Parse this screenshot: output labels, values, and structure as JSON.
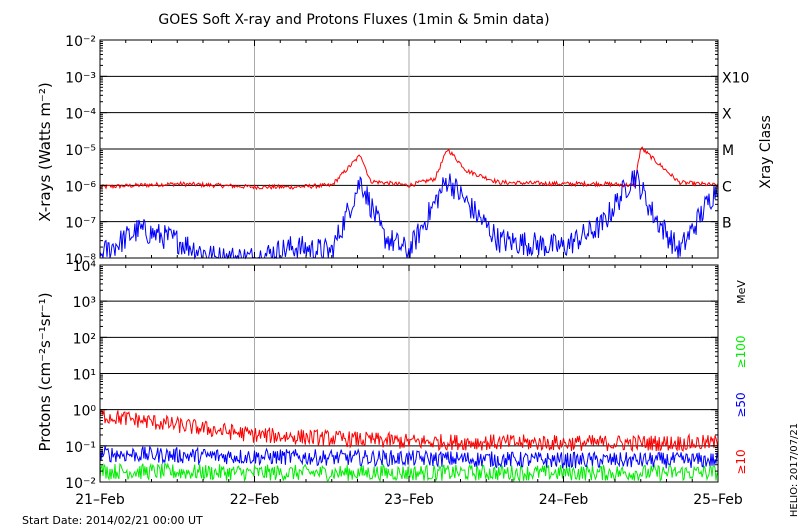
{
  "chart_data": [
    {
      "type": "line",
      "title": "GOES Soft X-ray and Protons Fluxes   (1min & 5min data)",
      "ylabel": "X-rays (Watts m⁻²)",
      "y_scale": "log",
      "ylim": [
        1e-08,
        0.01
      ],
      "ytick_labels": [
        "10⁻⁸",
        "10⁻⁷",
        "10⁻⁶",
        "10⁻⁵",
        "10⁻⁴",
        "10⁻³",
        "10⁻²"
      ],
      "xlim": [
        "2014-02-21",
        "2014-02-25"
      ],
      "right_axis_label": "Xray Class",
      "class_labels": [
        "B",
        "C",
        "M",
        "X",
        "X10"
      ],
      "grid": true,
      "series": [
        {
          "color": "#ff0000",
          "x": [
            "2014-02-21 00:00",
            "2014-02-21 06:00",
            "2014-02-21 12:00",
            "2014-02-21 18:00",
            "2014-02-22 00:00",
            "2014-02-22 06:00",
            "2014-02-22 12:00",
            "2014-02-22 16:30",
            "2014-02-22 18:00",
            "2014-02-23 00:00",
            "2014-02-23 04:00",
            "2014-02-23 06:00",
            "2014-02-23 09:00",
            "2014-02-23 14:00",
            "2014-02-24 00:00",
            "2014-02-24 06:00",
            "2014-02-24 11:00",
            "2014-02-24 12:00",
            "2014-02-24 18:00",
            "2014-02-25 00:00"
          ],
          "values": [
            9e-07,
            1e-06,
            1.1e-06,
            1e-06,
            9e-07,
            9e-07,
            1e-06,
            7e-06,
            1.3e-06,
            1e-06,
            1.5e-06,
            1e-05,
            2.5e-06,
            1.2e-06,
            1.1e-06,
            1.1e-06,
            1e-06,
            1.1e-05,
            1.2e-06,
            1e-06
          ]
        },
        {
          "color": "#0000ff",
          "x": [
            "2014-02-21 00:00",
            "2014-02-21 06:00",
            "2014-02-21 12:00",
            "2014-02-21 18:00",
            "2014-02-22 00:00",
            "2014-02-22 06:00",
            "2014-02-22 12:00",
            "2014-02-22 16:30",
            "2014-02-22 20:00",
            "2014-02-23 00:00",
            "2014-02-23 06:00",
            "2014-02-23 10:00",
            "2014-02-23 14:00",
            "2014-02-24 00:00",
            "2014-02-24 06:00",
            "2014-02-24 11:00",
            "2014-02-24 14:00",
            "2014-02-24 18:00",
            "2014-02-25 00:00"
          ],
          "values": [
            1.2e-08,
            6e-08,
            3e-08,
            1e-08,
            1e-08,
            2e-08,
            1.5e-08,
            1.4e-06,
            4e-08,
            1.5e-08,
            1.5e-06,
            2e-07,
            3e-08,
            2e-08,
            8e-08,
            2e-06,
            1.5e-07,
            1.5e-08,
            1e-06
          ]
        }
      ]
    },
    {
      "type": "line",
      "ylabel": "Protons (cm⁻²s⁻¹sr⁻¹)",
      "y_scale": "log",
      "ylim": [
        0.01,
        10000
      ],
      "ytick_labels": [
        "10⁻²",
        "10⁻¹",
        "10⁰",
        "10¹",
        "10²",
        "10³",
        "10⁴"
      ],
      "threshold_line": 10,
      "x": [
        "2014-02-21",
        "2014-02-22",
        "2014-02-23",
        "2014-02-24",
        "2014-02-25"
      ],
      "categories": [
        "21–Feb",
        "22–Feb",
        "23–Feb",
        "24–Feb",
        "25–Feb"
      ],
      "right_axis_label": "MeV",
      "grid": true,
      "series": [
        {
          "name": "≥10",
          "color": "#ff0000",
          "values": [
            0.7,
            0.2,
            0.13,
            0.12,
            0.12
          ]
        },
        {
          "name": "≥50",
          "color": "#0000ff",
          "values": [
            0.06,
            0.05,
            0.045,
            0.04,
            0.04
          ]
        },
        {
          "name": "≥100",
          "color": "#00ee00",
          "values": [
            0.02,
            0.018,
            0.018,
            0.018,
            0.018
          ]
        }
      ]
    }
  ],
  "footer": {
    "start_date": "Start Date: 2014/02/21 00:00 UT",
    "stamp": "HELIO: 2017/07/21"
  }
}
